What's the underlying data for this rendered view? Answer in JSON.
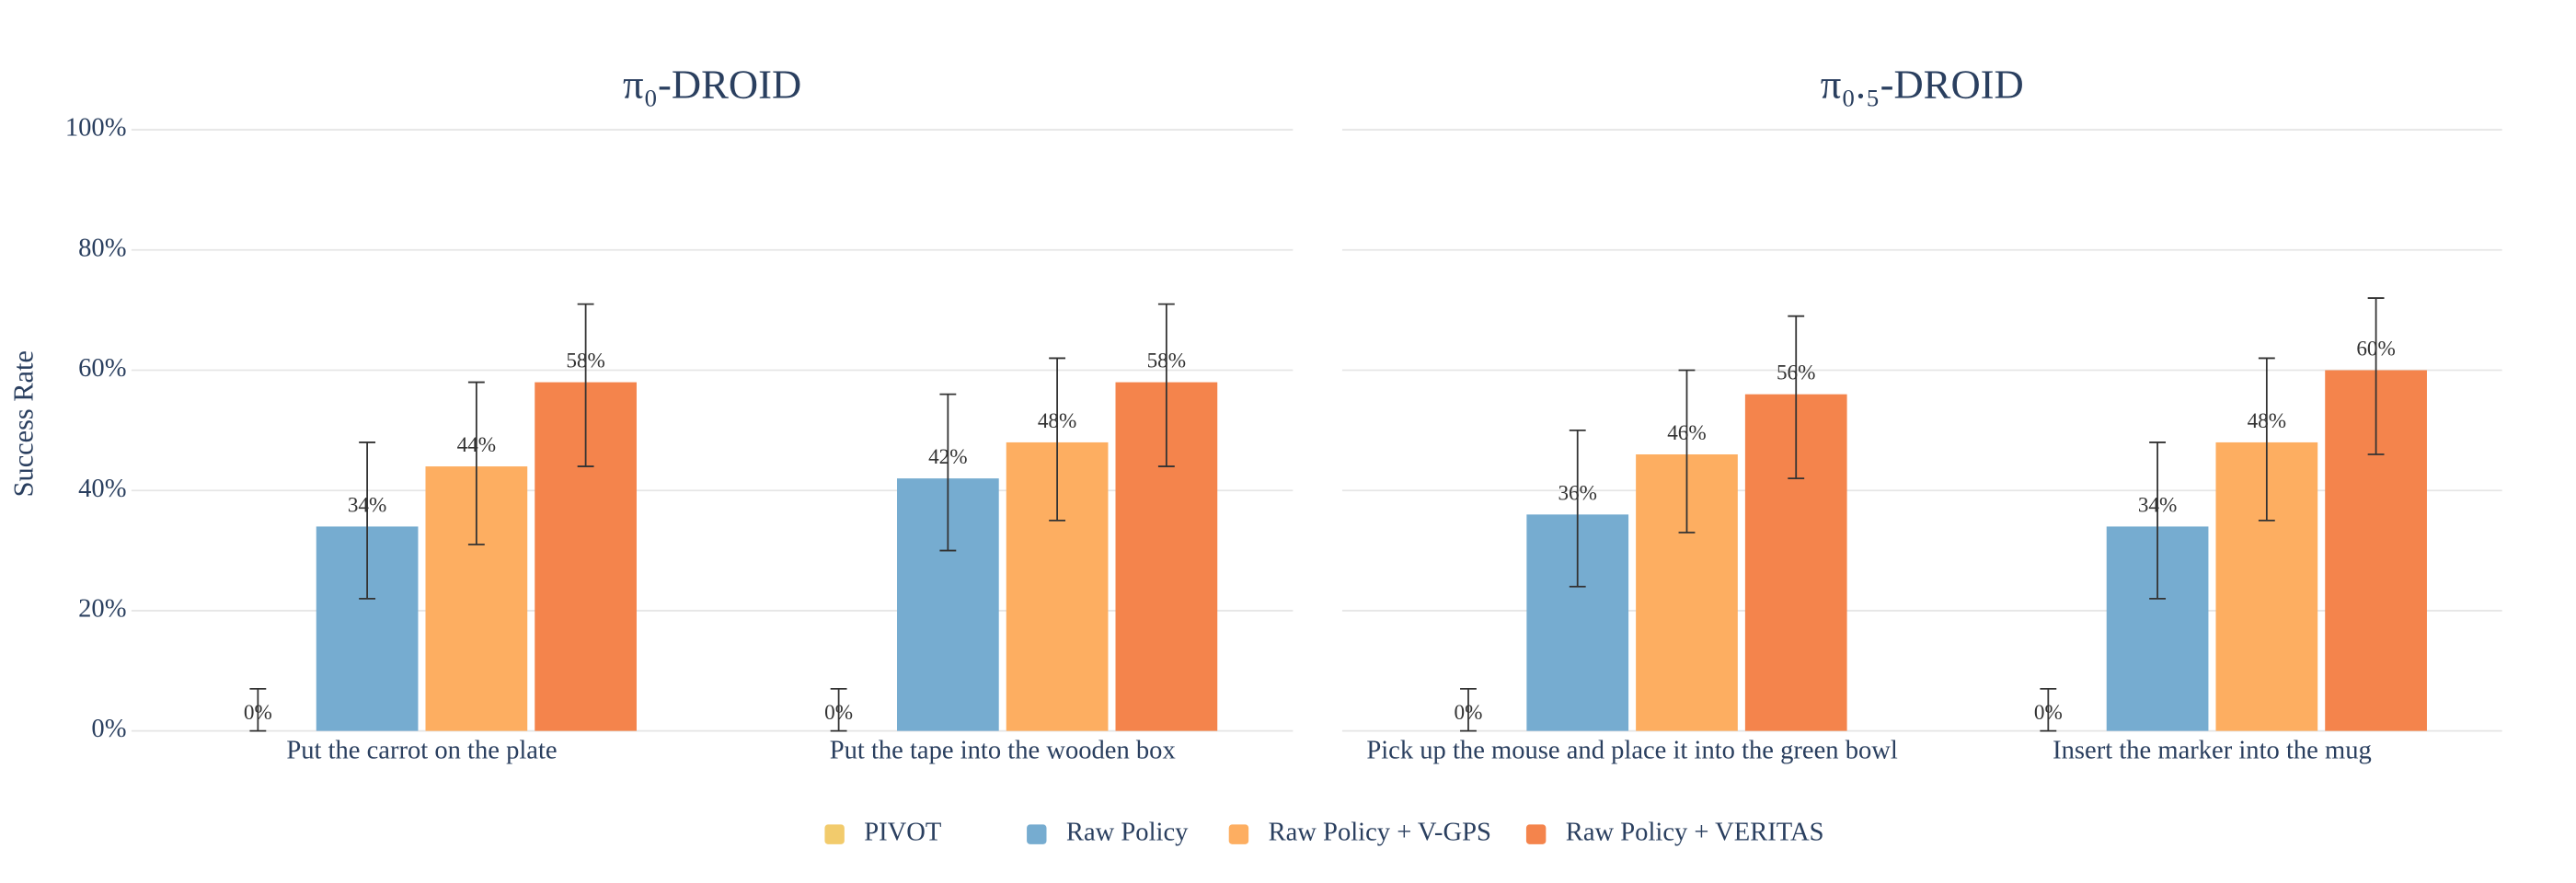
{
  "chart_data": [
    {
      "type": "bar",
      "title": "π₀-DROID",
      "ylabel": "Success Rate",
      "categories": [
        "Put the carrot on the plate",
        "Put the tape into the wooden box"
      ],
      "ylim": [
        0,
        100
      ],
      "yticks": [
        {
          "value": 0,
          "label": "0%"
        },
        {
          "value": 20,
          "label": "20%"
        },
        {
          "value": 40,
          "label": "40%"
        },
        {
          "value": 60,
          "label": "60%"
        },
        {
          "value": 80,
          "label": "80%"
        },
        {
          "value": 100,
          "label": "100%"
        }
      ],
      "grid": true,
      "legend": "bottom",
      "series": [
        {
          "name": "PIVOT",
          "color": "#f2cb6c",
          "values": [
            0,
            0
          ],
          "value_labels": [
            "0%",
            "0%"
          ],
          "err_minus": [
            0,
            0
          ],
          "err_plus": [
            7,
            7
          ]
        },
        {
          "name": "Raw Policy",
          "color": "#76acd0",
          "values": [
            34,
            42
          ],
          "value_labels": [
            "34%",
            "42%"
          ],
          "err_minus": [
            12,
            12
          ],
          "err_plus": [
            14,
            14
          ]
        },
        {
          "name": "Raw Policy + V-GPS",
          "color": "#fdae61",
          "values": [
            44,
            48
          ],
          "value_labels": [
            "44%",
            "48%"
          ],
          "err_minus": [
            13,
            13
          ],
          "err_plus": [
            14,
            14
          ]
        },
        {
          "name": "Raw Policy + VERITAS",
          "color": "#f4844c",
          "values": [
            58,
            58
          ],
          "value_labels": [
            "58%",
            "58%"
          ],
          "err_minus": [
            14,
            14
          ],
          "err_plus": [
            13,
            13
          ]
        }
      ]
    },
    {
      "type": "bar",
      "title": "π₀.₅-DROID",
      "categories": [
        "Pick up the mouse and place it into the green bowl",
        "Insert the marker into the mug"
      ],
      "ylim": [
        0,
        100
      ],
      "yticks": [
        0,
        20,
        40,
        60,
        80,
        100
      ],
      "grid": true,
      "series": [
        {
          "color": "#f2cb6c",
          "values": [
            0,
            0
          ],
          "value_labels": [
            "0%",
            "0%"
          ],
          "err_minus": [
            0,
            0
          ],
          "err_plus": [
            7,
            7
          ]
        },
        {
          "color": "#76acd0",
          "values": [
            36,
            34
          ],
          "value_labels": [
            "36%",
            "34%"
          ],
          "err_minus": [
            12,
            12
          ],
          "err_plus": [
            14,
            14
          ]
        },
        {
          "color": "#fdae61",
          "values": [
            46,
            48
          ],
          "value_labels": [
            "46%",
            "48%"
          ],
          "err_minus": [
            13,
            13
          ],
          "err_plus": [
            14,
            14
          ]
        },
        {
          "color": "#f4844c",
          "values": [
            56,
            60
          ],
          "value_labels": [
            "56%",
            "60%"
          ],
          "err_minus": [
            14,
            14
          ],
          "err_plus": [
            13,
            12
          ]
        }
      ]
    }
  ]
}
